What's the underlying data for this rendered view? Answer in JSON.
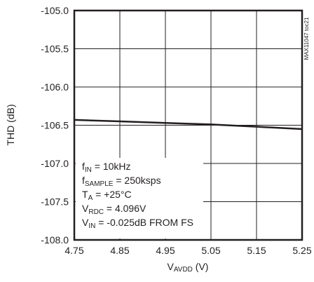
{
  "chart_data": {
    "type": "line",
    "title": "",
    "xlabel": "VAVDD (V)",
    "ylabel": "THD (dB)",
    "side_label": "MAX11047 toc21",
    "xlim": [
      4.75,
      5.25
    ],
    "ylim": [
      -108.0,
      -105.0
    ],
    "x_ticks": [
      4.75,
      4.85,
      4.95,
      5.05,
      5.15,
      5.25
    ],
    "x_tick_labels": [
      "4.75",
      "4.85",
      "4.95",
      "5.05",
      "5.15",
      "5.25"
    ],
    "y_ticks": [
      -105.0,
      -105.5,
      -106.0,
      -106.5,
      -107.0,
      -107.5,
      -108.0
    ],
    "y_tick_labels": [
      "-105.0",
      "-105.5",
      "-106.0",
      "-106.5",
      "-107.0",
      "-107.5",
      "-108.0"
    ],
    "grid": true,
    "series": [
      {
        "x": [
          4.75,
          4.85,
          4.95,
          5.05,
          5.15,
          5.25
        ],
        "y": [
          -106.43,
          -106.45,
          -106.47,
          -106.49,
          -106.52,
          -106.55
        ]
      }
    ],
    "annotations": [
      "fIN = 10kHz",
      "fSAMPLE = 250ksps",
      "TA = +25°C",
      "VRDC = 4.096V",
      "VIN = -0.025dB FROM FS"
    ]
  },
  "colors": {
    "line": "#231f20",
    "grid": "#231f20",
    "background": "#ffffff"
  }
}
